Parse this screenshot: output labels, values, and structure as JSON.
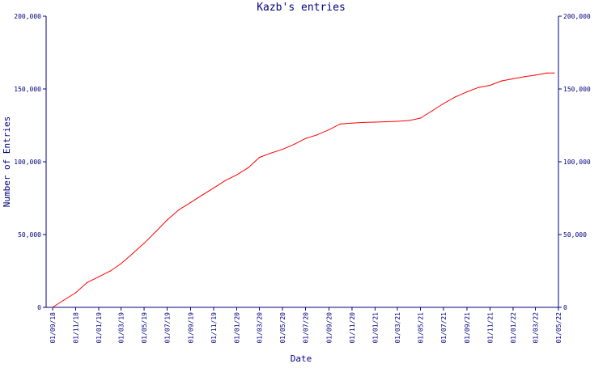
{
  "chart_data": {
    "type": "line",
    "title": "Kazb's entries",
    "xlabel": "Date",
    "ylabel": "Number of Entries",
    "ylim": [
      0,
      200000
    ],
    "y_ticks": [
      {
        "value": 0,
        "label": "0"
      },
      {
        "value": 50000,
        "label": "50,000"
      },
      {
        "value": 100000,
        "label": "100,000"
      },
      {
        "value": 150000,
        "label": "150,000"
      },
      {
        "value": 200000,
        "label": "200,000"
      }
    ],
    "x_ticks": [
      "01/09/18",
      "01/11/18",
      "01/01/19",
      "01/03/19",
      "01/05/19",
      "01/07/19",
      "01/09/19",
      "01/11/19",
      "01/01/20",
      "01/03/20",
      "01/05/20",
      "01/07/20",
      "01/09/20",
      "01/11/20",
      "01/01/21",
      "01/03/21",
      "01/05/21",
      "01/07/21",
      "01/09/21",
      "01/11/21",
      "01/01/22",
      "01/03/22",
      "01/05/22"
    ],
    "grid": false,
    "series": [
      {
        "color": "#ff0000",
        "points": [
          {
            "x": "2018-09-01",
            "y": 0
          },
          {
            "x": "2018-10-01",
            "y": 5000
          },
          {
            "x": "2018-11-01",
            "y": 10000
          },
          {
            "x": "2018-12-01",
            "y": 17000
          },
          {
            "x": "2019-01-01",
            "y": 21000
          },
          {
            "x": "2019-02-01",
            "y": 25000
          },
          {
            "x": "2019-03-01",
            "y": 30000
          },
          {
            "x": "2019-04-01",
            "y": 37000
          },
          {
            "x": "2019-05-01",
            "y": 44000
          },
          {
            "x": "2019-06-01",
            "y": 52000
          },
          {
            "x": "2019-07-01",
            "y": 60000
          },
          {
            "x": "2019-08-01",
            "y": 67000
          },
          {
            "x": "2019-09-01",
            "y": 72000
          },
          {
            "x": "2019-10-01",
            "y": 77000
          },
          {
            "x": "2019-11-01",
            "y": 82000
          },
          {
            "x": "2019-12-01",
            "y": 87000
          },
          {
            "x": "2020-01-01",
            "y": 91000
          },
          {
            "x": "2020-02-01",
            "y": 96000
          },
          {
            "x": "2020-03-01",
            "y": 103000
          },
          {
            "x": "2020-04-01",
            "y": 106000
          },
          {
            "x": "2020-05-01",
            "y": 108500
          },
          {
            "x": "2020-06-01",
            "y": 112000
          },
          {
            "x": "2020-07-01",
            "y": 116000
          },
          {
            "x": "2020-08-01",
            "y": 118500
          },
          {
            "x": "2020-09-01",
            "y": 122000
          },
          {
            "x": "2020-10-01",
            "y": 126000
          },
          {
            "x": "2020-11-01",
            "y": 126500
          },
          {
            "x": "2020-12-01",
            "y": 127000
          },
          {
            "x": "2021-01-01",
            "y": 127200
          },
          {
            "x": "2021-02-01",
            "y": 127500
          },
          {
            "x": "2021-03-01",
            "y": 127800
          },
          {
            "x": "2021-04-01",
            "y": 128300
          },
          {
            "x": "2021-05-01",
            "y": 130000
          },
          {
            "x": "2021-06-01",
            "y": 135000
          },
          {
            "x": "2021-07-01",
            "y": 140000
          },
          {
            "x": "2021-08-01",
            "y": 144500
          },
          {
            "x": "2021-09-01",
            "y": 148000
          },
          {
            "x": "2021-10-01",
            "y": 151000
          },
          {
            "x": "2021-11-01",
            "y": 152500
          },
          {
            "x": "2021-12-01",
            "y": 155500
          },
          {
            "x": "2022-01-01",
            "y": 157000
          },
          {
            "x": "2022-02-01",
            "y": 158500
          },
          {
            "x": "2022-03-01",
            "y": 159500
          },
          {
            "x": "2022-04-01",
            "y": 161000
          },
          {
            "x": "2022-04-20",
            "y": 161000
          }
        ]
      }
    ],
    "colors": {
      "axis": "#000080",
      "text": "#000080",
      "line": "#ff0000",
      "background": "#ffffff"
    }
  }
}
